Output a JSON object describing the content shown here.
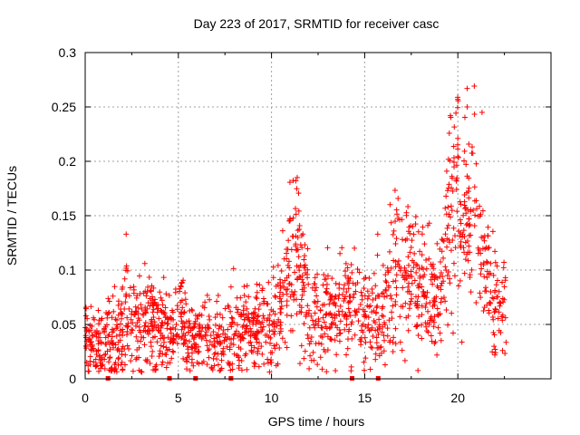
{
  "chart_data": {
    "type": "scatter",
    "title": "Day 223 of 2017, SRMTID for receiver casc",
    "xlabel": "GPS time / hours",
    "ylabel": "SRMTID / TECUs",
    "xlim": [
      0,
      25
    ],
    "ylim": [
      0,
      0.3
    ],
    "x_ticks": [
      0,
      5,
      10,
      15,
      20
    ],
    "x_tick_labels": [
      "0",
      "5",
      "10",
      "15",
      "20"
    ],
    "y_ticks": [
      0,
      0.05,
      0.1,
      0.15,
      0.2,
      0.25,
      0.3
    ],
    "y_tick_labels": [
      "0",
      "0.05",
      "0.1",
      "0.15",
      "0.2",
      "0.25",
      "0.3"
    ],
    "grid": true,
    "marker": "+",
    "marker_color": "#ff0000",
    "x_range_data": [
      0,
      22.6
    ],
    "baseline_markers_x": [
      1.2,
      4.5,
      5.9,
      7.8,
      14.3,
      15.7
    ],
    "envelope": [
      {
        "x": 0.0,
        "y": 0.033
      },
      {
        "x": 0.5,
        "y": 0.028
      },
      {
        "x": 1.0,
        "y": 0.03
      },
      {
        "x": 1.5,
        "y": 0.035
      },
      {
        "x": 2.0,
        "y": 0.042
      },
      {
        "x": 2.2,
        "y": 0.075
      },
      {
        "x": 2.5,
        "y": 0.05
      },
      {
        "x": 3.0,
        "y": 0.045
      },
      {
        "x": 3.4,
        "y": 0.06
      },
      {
        "x": 3.8,
        "y": 0.045
      },
      {
        "x": 4.3,
        "y": 0.04
      },
      {
        "x": 4.8,
        "y": 0.045
      },
      {
        "x": 5.2,
        "y": 0.058
      },
      {
        "x": 5.6,
        "y": 0.04
      },
      {
        "x": 6.2,
        "y": 0.036
      },
      {
        "x": 6.8,
        "y": 0.038
      },
      {
        "x": 7.4,
        "y": 0.037
      },
      {
        "x": 8.0,
        "y": 0.045
      },
      {
        "x": 8.5,
        "y": 0.043
      },
      {
        "x": 9.0,
        "y": 0.045
      },
      {
        "x": 9.5,
        "y": 0.048
      },
      {
        "x": 10.0,
        "y": 0.042
      },
      {
        "x": 10.5,
        "y": 0.058
      },
      {
        "x": 11.0,
        "y": 0.1
      },
      {
        "x": 11.3,
        "y": 0.12
      },
      {
        "x": 11.7,
        "y": 0.08
      },
      {
        "x": 12.2,
        "y": 0.055
      },
      {
        "x": 12.8,
        "y": 0.055
      },
      {
        "x": 13.3,
        "y": 0.06
      },
      {
        "x": 13.8,
        "y": 0.06
      },
      {
        "x": 14.3,
        "y": 0.065
      },
      {
        "x": 14.8,
        "y": 0.058
      },
      {
        "x": 15.3,
        "y": 0.055
      },
      {
        "x": 15.8,
        "y": 0.05
      },
      {
        "x": 16.3,
        "y": 0.075
      },
      {
        "x": 16.8,
        "y": 0.11
      },
      {
        "x": 17.2,
        "y": 0.1
      },
      {
        "x": 17.7,
        "y": 0.1
      },
      {
        "x": 18.2,
        "y": 0.085
      },
      {
        "x": 18.7,
        "y": 0.08
      },
      {
        "x": 19.2,
        "y": 0.09
      },
      {
        "x": 19.6,
        "y": 0.15
      },
      {
        "x": 20.0,
        "y": 0.18
      },
      {
        "x": 20.3,
        "y": 0.15
      },
      {
        "x": 20.6,
        "y": 0.13
      },
      {
        "x": 20.9,
        "y": 0.16
      },
      {
        "x": 21.2,
        "y": 0.11
      },
      {
        "x": 21.6,
        "y": 0.085
      },
      {
        "x": 22.0,
        "y": 0.075
      },
      {
        "x": 22.6,
        "y": 0.065
      }
    ],
    "highlight_points": [
      {
        "x": 2.2,
        "y": 0.133
      },
      {
        "x": 11.3,
        "y": 0.182
      },
      {
        "x": 15.7,
        "y": 0.133
      },
      {
        "x": 19.6,
        "y": 0.242
      },
      {
        "x": 20.5,
        "y": 0.267
      },
      {
        "x": 20.5,
        "y": 0.25
      },
      {
        "x": 21.3,
        "y": 0.245
      },
      {
        "x": 20.0,
        "y": 0.221
      },
      {
        "x": 0.9,
        "y": 0.012
      },
      {
        "x": 2.0,
        "y": 0.008
      },
      {
        "x": 22.4,
        "y": 0.026
      },
      {
        "x": 10.0,
        "y": 0.015
      }
    ]
  }
}
